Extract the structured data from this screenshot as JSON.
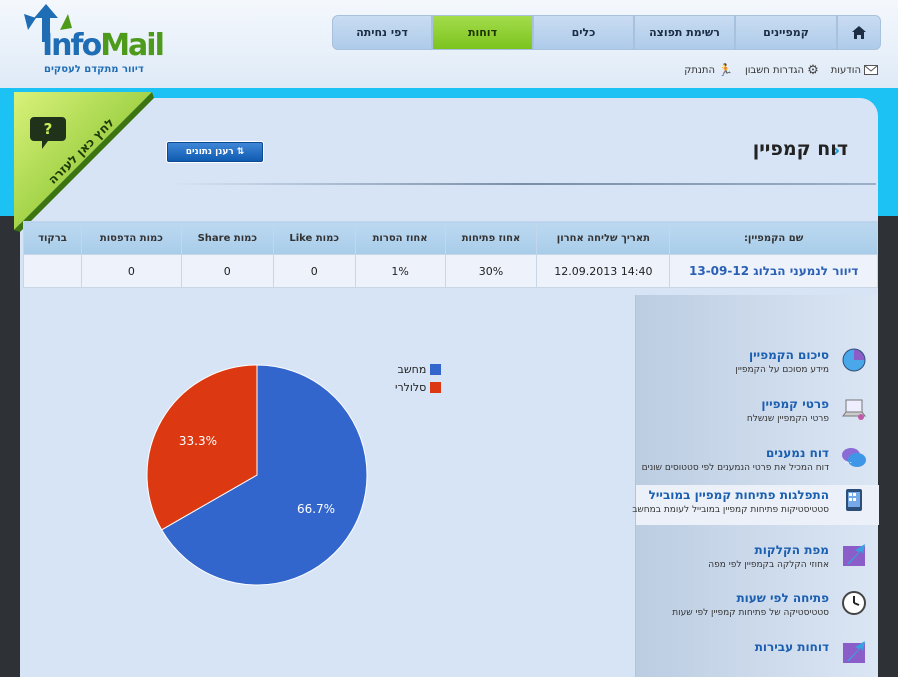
{
  "logo": {
    "word_in": "Info",
    "word_mail": "Mail",
    "tagline": "דיוור מתקדם לעסקים"
  },
  "nav": {
    "tabs": [
      {
        "label": "דפי נחיתה",
        "active": false
      },
      {
        "label": "דוחות",
        "active": true
      },
      {
        "label": "כלים",
        "active": false
      },
      {
        "label": "רשימת תפוצה",
        "active": false
      },
      {
        "label": "קמפיינים",
        "active": false
      }
    ],
    "home_icon": "home-icon"
  },
  "util": {
    "messages": "הודעות",
    "settings": "הגדרות חשבון",
    "logout": "התנתק"
  },
  "help": {
    "label": "לחץ כאן לעזרה",
    "icon": "?"
  },
  "page": {
    "title": "דוח קמפיין",
    "refresh_label": "רענן נתונים"
  },
  "table": {
    "headers": [
      "שם הקמפיין:",
      "תאריך שליחה אחרון",
      "אחוז פתיחות",
      "אחוז הסרות",
      "כמות Like",
      "כמות Share",
      "כמות הדפסות",
      "ברקוד"
    ],
    "row": [
      "דיוור לנמעני הבלוג 13-09-12",
      "12.09.2013 14:40",
      "30%",
      "1%",
      "0",
      "0",
      "0",
      ""
    ]
  },
  "menu": [
    {
      "title": "סיכום הקמפיין",
      "desc": "מידע מסוכם על הקמפיין",
      "icon": "pie-chart-icon"
    },
    {
      "title": "פרטי קמפיין",
      "desc": "פרטי הקמפיין שנשלח",
      "icon": "laptop-icon"
    },
    {
      "title": "דוח נמענים",
      "desc": "דוח המכיל את פרטי הנמענים לפי סטטוסים שונים",
      "icon": "chat-bubbles-icon"
    },
    {
      "title": "התפלגות פתיחות קמפיין במובייל",
      "desc": "סטטיסטיקות פתיחות קמפיין במובייל לעומת במחשב",
      "icon": "mobile-icon",
      "selected": true
    },
    {
      "title": "מפת הקלקות",
      "desc": "אחוזי הקלקה בקמפיין לפי מפה",
      "icon": "arrow-icon"
    },
    {
      "title": "פתיחה לפי שעות",
      "desc": "סטטיסטיקה של פתיחות קמפיין לפי שעות",
      "icon": "clock-icon"
    },
    {
      "title": "דוחות עבירות",
      "desc": "",
      "icon": "arrow-icon"
    }
  ],
  "chart_data": {
    "type": "pie",
    "series": [
      {
        "name": "מחשב",
        "value": 66.7,
        "label": "66.7%",
        "color": "#3366cc"
      },
      {
        "name": "סלולרי",
        "value": 33.3,
        "label": "33.3%",
        "color": "#dc3912"
      }
    ]
  }
}
